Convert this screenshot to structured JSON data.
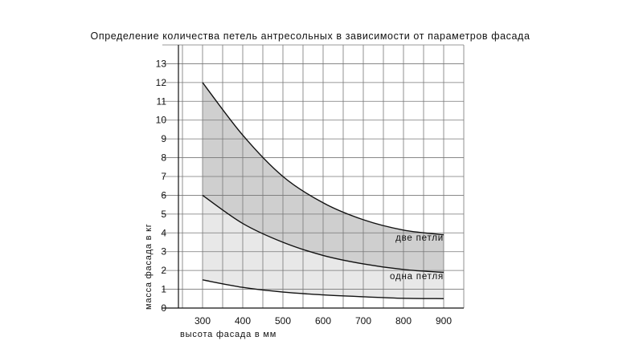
{
  "chart_data": {
    "type": "area",
    "title": "Определение количества петель антресольных в зависимости от параметров фасада",
    "xlabel": "высота фасада в мм",
    "ylabel": "масса фасада в кг",
    "xlim": [
      200,
      950
    ],
    "ylim": [
      0,
      14
    ],
    "x_ticks": [
      300,
      400,
      500,
      600,
      700,
      800,
      900
    ],
    "y_ticks": [
      0,
      1,
      2,
      3,
      4,
      5,
      6,
      7,
      8,
      9,
      10,
      11,
      12,
      13
    ],
    "grid": true,
    "series": [
      {
        "x": [
          300,
          400,
          500,
          600,
          700,
          800,
          900
        ],
        "values": [
          1.5,
          1.1,
          0.85,
          0.7,
          0.6,
          0.52,
          0.5
        ]
      },
      {
        "name": "одна петля",
        "x": [
          300,
          400,
          500,
          600,
          700,
          800,
          900
        ],
        "values": [
          6.0,
          4.5,
          3.5,
          2.8,
          2.35,
          2.05,
          1.9
        ]
      },
      {
        "name": "две петли",
        "x": [
          300,
          400,
          500,
          600,
          700,
          800,
          900
        ],
        "values": [
          12.0,
          9.2,
          7.0,
          5.6,
          4.7,
          4.15,
          3.9
        ]
      }
    ],
    "fill_colors": [
      "#e8e8e8",
      "#cfcfcf"
    ],
    "line_color": "#111111",
    "grid_color": "#777777"
  }
}
